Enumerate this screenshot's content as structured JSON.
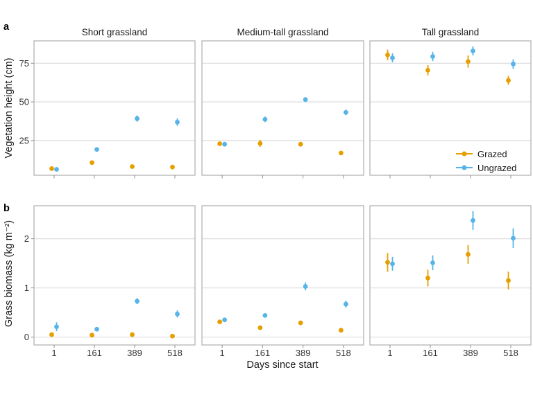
{
  "figure": {
    "panel_labels": [
      "a",
      "b"
    ],
    "x_axis_label": "Days since start",
    "legend": {
      "entries": [
        {
          "label": "Grazed",
          "color": "#E69F00"
        },
        {
          "label": "Ungrazed",
          "color": "#56B4E9"
        }
      ],
      "position": "inside bottom-right of top Tall grassland panel"
    },
    "colors": {
      "grazed": "#E69F00",
      "ungrazed": "#56B4E9",
      "gridline": "#E0E0E0",
      "panel_border": "#ADADAD",
      "tick": "#8F8F8F",
      "tick_label": "#333333",
      "background": "#FFFFFF"
    }
  },
  "chart_data": [
    {
      "type": "scatter",
      "subplot": "a",
      "ylabel": "Vegetation height (cm)",
      "xlabel": "",
      "x_categories": [
        "1",
        "161",
        "389",
        "518"
      ],
      "yticks": [
        25,
        50,
        75
      ],
      "ylim": [
        2.5,
        89.5
      ],
      "grid": true,
      "error_bars": true,
      "panels": [
        {
          "title": "Short grassland",
          "series": [
            {
              "name": "Grazed",
              "color": "#E69F00",
              "values": [
                6.8,
                10.7,
                8.1,
                7.8
              ],
              "errors": [
                0.7,
                0.7,
                0.8,
                0.8
              ]
            },
            {
              "name": "Ungrazed",
              "color": "#56B4E9",
              "values": [
                6.3,
                19.2,
                39.2,
                36.9
              ],
              "errors": [
                0.7,
                0.9,
                2.0,
                2.4
              ]
            }
          ]
        },
        {
          "title": "Medium-tall grassland",
          "series": [
            {
              "name": "Grazed",
              "color": "#E69F00",
              "values": [
                22.9,
                23.1,
                22.6,
                16.9
              ],
              "errors": [
                0.8,
                2.2,
                1.5,
                1.0
              ]
            },
            {
              "name": "Ungrazed",
              "color": "#56B4E9",
              "values": [
                22.6,
                38.7,
                51.5,
                43.2
              ],
              "errors": [
                0.8,
                1.8,
                1.6,
                1.8
              ]
            }
          ]
        },
        {
          "title": "Tall grassland",
          "series": [
            {
              "name": "Grazed",
              "color": "#E69F00",
              "values": [
                80.4,
                70.5,
                76.1,
                63.9
              ],
              "errors": [
                3.4,
                3.3,
                3.9,
                2.9
              ]
            },
            {
              "name": "Ungrazed",
              "color": "#56B4E9",
              "values": [
                78.5,
                79.4,
                83.0,
                74.5
              ],
              "errors": [
                2.9,
                3.0,
                2.9,
                3.1
              ]
            }
          ]
        }
      ]
    },
    {
      "type": "scatter",
      "subplot": "b",
      "ylabel": "Grass biomass (kg m⁻²)",
      "xlabel": "Days since start",
      "x_categories": [
        "1",
        "161",
        "389",
        "518"
      ],
      "yticks": [
        0,
        1,
        2
      ],
      "ylim": [
        -0.16,
        2.67
      ],
      "grid": true,
      "error_bars": true,
      "panels": [
        {
          "title": "Short grassland",
          "series": [
            {
              "name": "Grazed",
              "color": "#E69F00",
              "values": [
                0.05,
                0.04,
                0.05,
                0.02
              ],
              "errors": [
                0.02,
                0.02,
                0.02,
                0.02
              ]
            },
            {
              "name": "Ungrazed",
              "color": "#56B4E9",
              "values": [
                0.21,
                0.16,
                0.73,
                0.47
              ],
              "errors": [
                0.09,
                0.04,
                0.06,
                0.07
              ]
            }
          ]
        },
        {
          "title": "Medium-tall grassland",
          "series": [
            {
              "name": "Grazed",
              "color": "#E69F00",
              "values": [
                0.31,
                0.19,
                0.29,
                0.14
              ],
              "errors": [
                0.03,
                0.02,
                0.03,
                0.02
              ]
            },
            {
              "name": "Ungrazed",
              "color": "#56B4E9",
              "values": [
                0.35,
                0.44,
                1.03,
                0.67
              ],
              "errors": [
                0.04,
                0.04,
                0.08,
                0.07
              ]
            }
          ]
        },
        {
          "title": "Tall grassland",
          "series": [
            {
              "name": "Grazed",
              "color": "#E69F00",
              "values": [
                1.52,
                1.2,
                1.68,
                1.15
              ],
              "errors": [
                0.19,
                0.17,
                0.19,
                0.18
              ]
            },
            {
              "name": "Ungrazed",
              "color": "#56B4E9",
              "values": [
                1.49,
                1.51,
                2.37,
                2.01
              ],
              "errors": [
                0.14,
                0.15,
                0.19,
                0.2
              ]
            }
          ]
        }
      ]
    }
  ]
}
